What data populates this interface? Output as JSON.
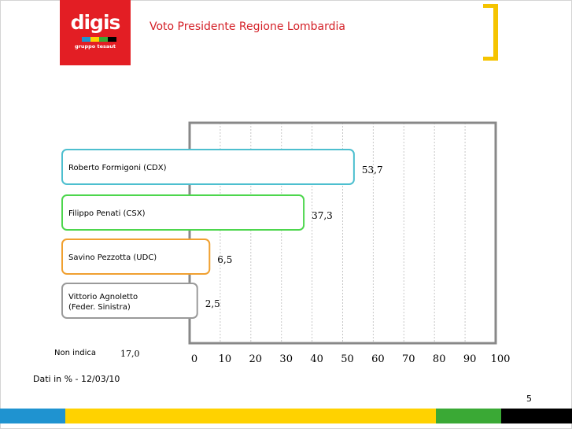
{
  "header": {
    "logo_text": "digis",
    "logo_subtext": "gruppo tesaut",
    "title": "Voto Presidente Regione Lombardia"
  },
  "footer": {
    "source": "Dati in % - 12/03/10",
    "page_number": "5"
  },
  "non_indica": {
    "label": "Non indica",
    "value": "17,0"
  },
  "colors": {
    "brand_red": "#e31e24",
    "title_red": "#d42027",
    "accent_yellow": "#f5c400",
    "band_blue": "#1f93d0",
    "band_yellow": "#ffd200",
    "band_green": "#3aa935",
    "band_black": "#000000",
    "frame_gray": "#888888"
  },
  "chart_data": {
    "type": "bar",
    "orientation": "horizontal",
    "title": "Voto Presidente Regione Lombardia",
    "categories": [
      "Roberto Formigoni (CDX)",
      "Filippo Penati (CSX)",
      "Savino Pezzotta (UDC)",
      "Vittorio Agnoletto (Feder. Sinistra)"
    ],
    "category_lines": [
      [
        "Roberto Formigoni (CDX)"
      ],
      [
        "Filippo Penati (CSX)"
      ],
      [
        "Savino Pezzotta (UDC)"
      ],
      [
        "Vittorio Agnoletto",
        "(Feder. Sinistra)"
      ]
    ],
    "values": [
      53.7,
      37.3,
      6.5,
      2.5
    ],
    "value_labels": [
      "53,7",
      "37,3",
      "6,5",
      "2,5"
    ],
    "colors": [
      "#4dbfcf",
      "#4dd64d",
      "#f0a030",
      "#9a9a9a"
    ],
    "xlim": [
      0,
      100
    ],
    "ticks": [
      0,
      10,
      20,
      30,
      40,
      50,
      60,
      70,
      80,
      90,
      100
    ],
    "tick_labels": [
      "0",
      "10",
      "20",
      "30",
      "40",
      "50",
      "60",
      "70",
      "80",
      "90",
      "100"
    ],
    "grid": true,
    "unit": "%"
  }
}
